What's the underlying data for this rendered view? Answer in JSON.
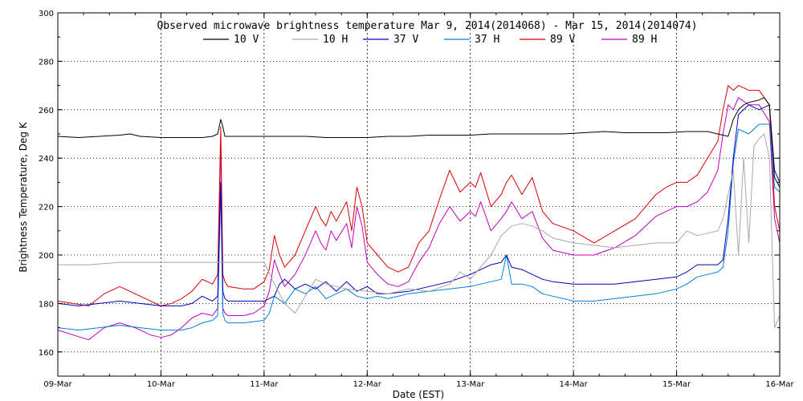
{
  "chart_data": {
    "type": "line",
    "title": "Observed microwave brightness temperature Mar  9, 2014(2014068) - Mar 15, 2014(2014074)",
    "xlabel": "Date (EST)",
    "ylabel": "Brightness Temperature, Deg K",
    "ylim": [
      150,
      300
    ],
    "yticks": [
      160,
      180,
      200,
      220,
      240,
      260,
      280,
      300
    ],
    "xlim": [
      0,
      7
    ],
    "xticks": [
      {
        "x": 0,
        "label": "09-Mar"
      },
      {
        "x": 1,
        "label": "10-Mar"
      },
      {
        "x": 2,
        "label": "11-Mar"
      },
      {
        "x": 3,
        "label": "12-Mar"
      },
      {
        "x": 4,
        "label": "13-Mar"
      },
      {
        "x": 5,
        "label": "14-Mar"
      },
      {
        "x": 6,
        "label": "15-Mar"
      },
      {
        "x": 7,
        "label": "16-Mar"
      }
    ],
    "grid": true,
    "legend_position": "top-center",
    "series": [
      {
        "name": "10 V",
        "color": "#000000",
        "x": [
          0,
          0.2,
          0.4,
          0.6,
          0.7,
          0.8,
          1.0,
          1.2,
          1.4,
          1.5,
          1.55,
          1.58,
          1.6,
          1.62,
          1.65,
          1.7,
          1.9,
          2.0,
          2.2,
          2.4,
          2.6,
          2.8,
          3.0,
          3.2,
          3.4,
          3.6,
          3.8,
          4.0,
          4.2,
          4.35,
          4.5,
          4.7,
          4.9,
          5.1,
          5.3,
          5.5,
          5.7,
          5.9,
          6.1,
          6.3,
          6.4,
          6.5,
          6.55,
          6.6,
          6.65,
          6.7,
          6.8,
          6.85,
          6.9,
          6.95,
          7.0
        ],
        "y": [
          249,
          248.5,
          249,
          249.5,
          250,
          249,
          248.5,
          248.5,
          248.5,
          249,
          250,
          256,
          253,
          249,
          249,
          249,
          249,
          249,
          249,
          249,
          248.5,
          248.5,
          248.5,
          249,
          249,
          249.5,
          249.5,
          249.5,
          250,
          250,
          250,
          250,
          250,
          250.5,
          251,
          250.5,
          250.5,
          250.5,
          251,
          251,
          250,
          249,
          256,
          260,
          262,
          263,
          264,
          265,
          262,
          232,
          228
        ]
      },
      {
        "name": "10 H",
        "color": "#a8a8a8",
        "x": [
          0,
          0.3,
          0.6,
          1.0,
          1.5,
          1.6,
          1.65,
          1.9,
          2.0,
          2.1,
          2.2,
          2.3,
          2.4,
          2.5,
          2.6,
          2.8,
          3.0,
          3.2,
          3.4,
          3.6,
          3.8,
          3.9,
          4.0,
          4.1,
          4.2,
          4.3,
          4.4,
          4.5,
          4.6,
          4.7,
          4.8,
          5.0,
          5.2,
          5.4,
          5.6,
          5.8,
          6.0,
          6.1,
          6.2,
          6.3,
          6.4,
          6.45,
          6.5,
          6.55,
          6.6,
          6.65,
          6.7,
          6.75,
          6.8,
          6.85,
          6.9,
          6.95,
          7.0
        ],
        "y": [
          196,
          196,
          197,
          197,
          197,
          197,
          197,
          197,
          197,
          188,
          180,
          176,
          183,
          190,
          188,
          186,
          185,
          184,
          186,
          185,
          188,
          193,
          190,
          195,
          200,
          208,
          212,
          213,
          212,
          210,
          207,
          205,
          204,
          203,
          204,
          205,
          205,
          210,
          208,
          209,
          210,
          215,
          225,
          235,
          200,
          240,
          205,
          245,
          248,
          250,
          240,
          170,
          175
        ]
      },
      {
        "name": "37 V",
        "color": "#0000b8",
        "x": [
          0,
          0.2,
          0.4,
          0.6,
          0.8,
          1.0,
          1.2,
          1.3,
          1.4,
          1.5,
          1.55,
          1.58,
          1.6,
          1.62,
          1.65,
          1.8,
          2.0,
          2.1,
          2.15,
          2.2,
          2.3,
          2.4,
          2.5,
          2.6,
          2.7,
          2.8,
          2.9,
          3.0,
          3.1,
          3.2,
          3.4,
          3.6,
          3.8,
          4.0,
          4.2,
          4.3,
          4.35,
          4.4,
          4.5,
          4.6,
          4.7,
          4.8,
          5.0,
          5.2,
          5.4,
          5.6,
          5.8,
          6.0,
          6.1,
          6.2,
          6.3,
          6.4,
          6.45,
          6.5,
          6.55,
          6.6,
          6.7,
          6.8,
          6.9,
          6.95,
          7.0
        ],
        "y": [
          180,
          179,
          180,
          181,
          180,
          179,
          179,
          180,
          183,
          181,
          183,
          230,
          185,
          182,
          181,
          181,
          181,
          183,
          188,
          190,
          186,
          188,
          186,
          189,
          185,
          189,
          185,
          187,
          184,
          184,
          185,
          187,
          189,
          192,
          196,
          197,
          200,
          195,
          194,
          192,
          190,
          189,
          188,
          188,
          188,
          189,
          190,
          191,
          193,
          196,
          196,
          196,
          198,
          215,
          240,
          258,
          262,
          260,
          262,
          235,
          230
        ]
      },
      {
        "name": "37 H",
        "color": "#0080d8",
        "x": [
          0,
          0.2,
          0.4,
          0.6,
          0.8,
          1.0,
          1.2,
          1.3,
          1.4,
          1.5,
          1.55,
          1.58,
          1.6,
          1.62,
          1.65,
          1.8,
          2.0,
          2.05,
          2.1,
          2.2,
          2.3,
          2.4,
          2.5,
          2.6,
          2.7,
          2.8,
          2.9,
          3.0,
          3.1,
          3.2,
          3.4,
          3.6,
          3.8,
          4.0,
          4.2,
          4.3,
          4.35,
          4.4,
          4.5,
          4.6,
          4.7,
          4.8,
          5.0,
          5.2,
          5.4,
          5.6,
          5.8,
          6.0,
          6.1,
          6.2,
          6.3,
          6.4,
          6.45,
          6.5,
          6.55,
          6.6,
          6.7,
          6.8,
          6.9,
          6.95,
          7.0
        ],
        "y": [
          170,
          169,
          170,
          171,
          170,
          169,
          169,
          170,
          172,
          173,
          175,
          228,
          176,
          173,
          172,
          172,
          173,
          176,
          183,
          180,
          186,
          184,
          187,
          182,
          184,
          186,
          183,
          182,
          183,
          182,
          184,
          185,
          186,
          187,
          189,
          190,
          200,
          188,
          188,
          187,
          184,
          183,
          181,
          181,
          182,
          183,
          184,
          186,
          188,
          191,
          192,
          193,
          195,
          210,
          238,
          252,
          250,
          254,
          254,
          228,
          226
        ]
      },
      {
        "name": "89 V",
        "color": "#d80000",
        "x": [
          0,
          0.15,
          0.3,
          0.45,
          0.6,
          0.75,
          0.9,
          1.0,
          1.1,
          1.2,
          1.3,
          1.4,
          1.5,
          1.55,
          1.58,
          1.6,
          1.62,
          1.65,
          1.8,
          1.9,
          2.0,
          2.05,
          2.1,
          2.15,
          2.2,
          2.3,
          2.4,
          2.5,
          2.55,
          2.6,
          2.65,
          2.7,
          2.8,
          2.85,
          2.9,
          2.95,
          3.0,
          3.1,
          3.2,
          3.3,
          3.4,
          3.5,
          3.6,
          3.7,
          3.8,
          3.9,
          4.0,
          4.05,
          4.1,
          4.2,
          4.3,
          4.35,
          4.4,
          4.5,
          4.6,
          4.7,
          4.8,
          5.0,
          5.2,
          5.4,
          5.6,
          5.8,
          5.9,
          6.0,
          6.1,
          6.2,
          6.3,
          6.4,
          6.45,
          6.5,
          6.55,
          6.6,
          6.7,
          6.8,
          6.9,
          6.95,
          7.0
        ],
        "y": [
          181,
          180,
          179,
          184,
          187,
          184,
          181,
          179,
          180,
          182,
          185,
          190,
          188,
          192,
          253,
          192,
          189,
          187,
          186,
          186,
          189,
          194,
          208,
          200,
          195,
          200,
          210,
          220,
          215,
          212,
          218,
          214,
          222,
          210,
          228,
          220,
          205,
          200,
          195,
          193,
          195,
          205,
          210,
          223,
          235,
          226,
          230,
          228,
          234,
          220,
          225,
          230,
          233,
          225,
          232,
          218,
          213,
          210,
          205,
          210,
          215,
          225,
          228,
          230,
          230,
          233,
          240,
          247,
          260,
          270,
          268,
          270,
          268,
          268,
          262,
          220,
          210
        ]
      },
      {
        "name": "89 H",
        "color": "#c000c0",
        "x": [
          0,
          0.15,
          0.3,
          0.45,
          0.6,
          0.75,
          0.9,
          1.0,
          1.1,
          1.2,
          1.3,
          1.4,
          1.5,
          1.55,
          1.58,
          1.6,
          1.62,
          1.65,
          1.8,
          1.9,
          2.0,
          2.05,
          2.1,
          2.15,
          2.2,
          2.3,
          2.4,
          2.5,
          2.55,
          2.6,
          2.65,
          2.7,
          2.8,
          2.85,
          2.9,
          2.95,
          3.0,
          3.1,
          3.2,
          3.3,
          3.4,
          3.5,
          3.6,
          3.7,
          3.8,
          3.9,
          4.0,
          4.05,
          4.1,
          4.2,
          4.3,
          4.35,
          4.4,
          4.5,
          4.6,
          4.7,
          4.8,
          5.0,
          5.2,
          5.4,
          5.6,
          5.8,
          5.9,
          6.0,
          6.1,
          6.2,
          6.3,
          6.4,
          6.45,
          6.5,
          6.55,
          6.6,
          6.7,
          6.8,
          6.9,
          6.95,
          7.0
        ],
        "y": [
          169,
          167,
          165,
          170,
          172,
          170,
          167,
          166,
          167,
          170,
          174,
          176,
          175,
          178,
          248,
          178,
          176,
          175,
          175,
          176,
          179,
          185,
          198,
          192,
          187,
          192,
          200,
          210,
          205,
          202,
          210,
          206,
          213,
          203,
          220,
          212,
          197,
          192,
          188,
          187,
          189,
          197,
          203,
          213,
          220,
          214,
          218,
          216,
          222,
          210,
          215,
          218,
          222,
          215,
          218,
          207,
          202,
          200,
          200,
          203,
          208,
          216,
          218,
          220,
          220,
          222,
          226,
          235,
          250,
          262,
          260,
          265,
          262,
          262,
          255,
          215,
          205
        ]
      }
    ]
  }
}
